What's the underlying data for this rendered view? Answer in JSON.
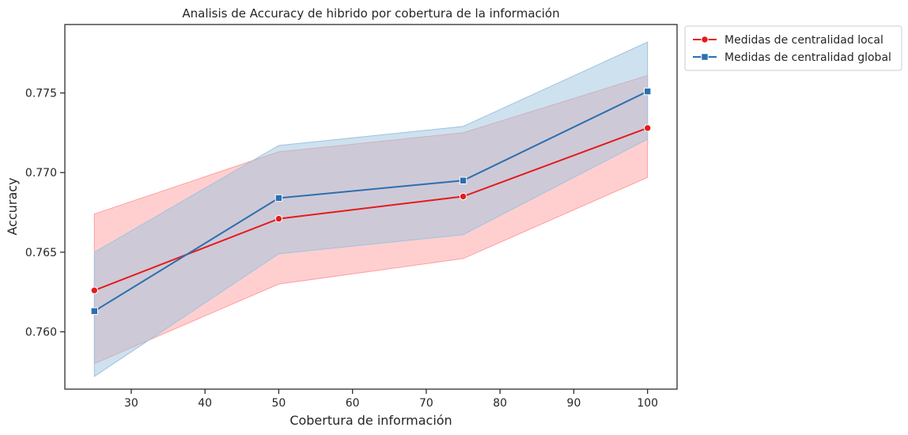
{
  "chart_data": {
    "type": "line",
    "title": "Analisis de Accuracy de hibrido por cobertura de la información",
    "xlabel": "Cobertura de información",
    "ylabel": "Accuracy",
    "x": [
      25,
      50,
      75,
      100
    ],
    "xlim": [
      21,
      104
    ],
    "ylim": [
      0.7564,
      0.7793
    ],
    "xticks": [
      30,
      40,
      50,
      60,
      70,
      80,
      90,
      100
    ],
    "yticks": [
      0.76,
      0.765,
      0.77,
      0.775
    ],
    "ytick_labels": [
      "0.760",
      "0.765",
      "0.770",
      "0.775"
    ],
    "grid": false,
    "legend_position": "outside-top-right",
    "series": [
      {
        "name": "Medidas de centralidad local",
        "marker": "circle",
        "color": "#e41a1c",
        "band_color": "#ff9f9f",
        "values": [
          0.7626,
          0.7671,
          0.7685,
          0.7728
        ],
        "ci_low": [
          0.758,
          0.763,
          0.7646,
          0.7697
        ],
        "ci_high": [
          0.7674,
          0.7713,
          0.7725,
          0.7761
        ]
      },
      {
        "name": "Medidas de centralidad global",
        "marker": "square",
        "color": "#2b6fae",
        "band_color": "#9ec3df",
        "values": [
          0.7613,
          0.7684,
          0.7695,
          0.7751
        ],
        "ci_low": [
          0.7572,
          0.7649,
          0.7661,
          0.7721
        ],
        "ci_high": [
          0.765,
          0.7717,
          0.7729,
          0.7782
        ]
      }
    ]
  }
}
